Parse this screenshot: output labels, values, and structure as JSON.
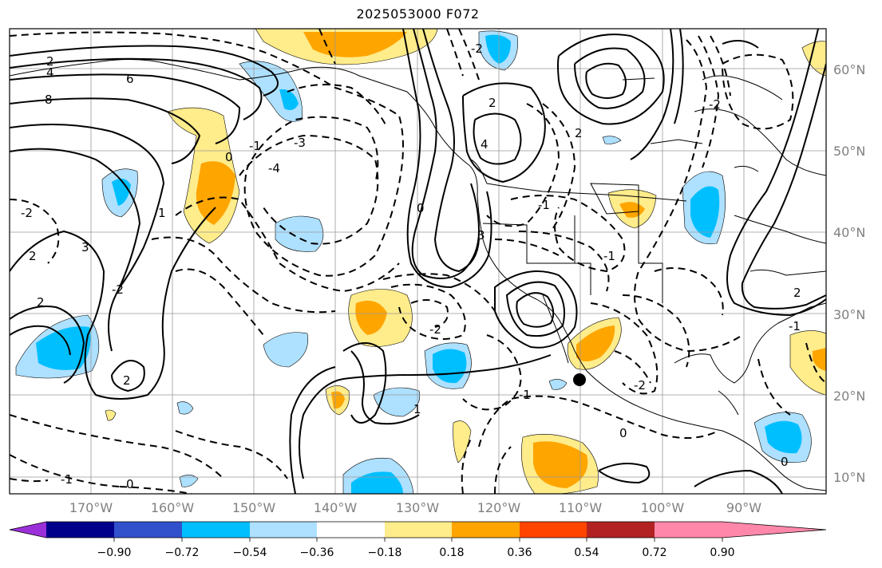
{
  "title": "2025053000 F072",
  "map": {
    "lat_labels": [
      "60°N",
      "50°N",
      "40°N",
      "30°N",
      "20°N",
      "10°N"
    ],
    "lon_labels": [
      "170°W",
      "160°W",
      "150°W",
      "140°W",
      "130°W",
      "120°W",
      "110°W",
      "100°W",
      "90°W"
    ],
    "contour_labels": [
      "2",
      "4",
      "6",
      "8",
      "3",
      "-3",
      "-4",
      "0",
      "-1",
      "-2",
      "-1",
      "-2",
      "2",
      "2",
      "1",
      "-2",
      "0",
      "1",
      "2",
      "-2",
      "0",
      "-1",
      "-1",
      "-2",
      "0",
      "0",
      "-1",
      "2",
      "2",
      "4",
      "-2",
      "3",
      "-1",
      "2"
    ],
    "marker": "storm-position-dot"
  },
  "colorbar": {
    "colors": [
      "#9b30d9",
      "#00008b",
      "#3151cc",
      "#00bfff",
      "#aee0ff",
      "#ffffff",
      "#ffec8b",
      "#ffa500",
      "#ff4500",
      "#b22222",
      "#ff88aa"
    ],
    "tick_labels": [
      "−0.90",
      "−0.72",
      "−0.54",
      "−0.36",
      "−0.18",
      "0.18",
      "0.36",
      "0.54",
      "0.72",
      "0.90"
    ]
  }
}
